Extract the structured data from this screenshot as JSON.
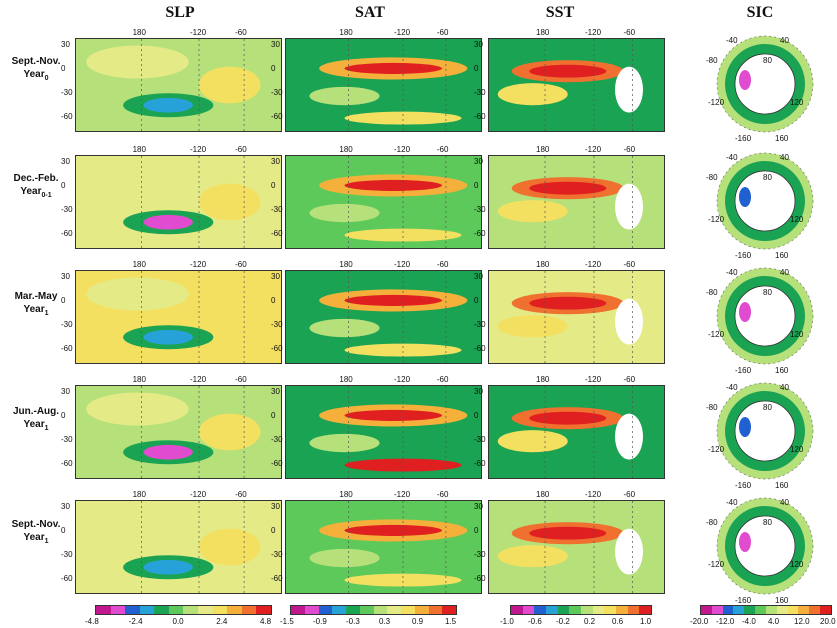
{
  "columns": [
    "SLP",
    "SAT",
    "SST",
    "SIC"
  ],
  "rows": [
    {
      "season": "Sept.-Nov.",
      "year": "Year",
      "sub": "0"
    },
    {
      "season": "Dec.-Feb.",
      "year": "Year",
      "sub": "0-1"
    },
    {
      "season": "Mar.-May",
      "year": "Year",
      "sub": "1"
    },
    {
      "season": "Jun.-Aug.",
      "year": "Year",
      "sub": "1"
    },
    {
      "season": "Sept.-Nov.",
      "year": "Year",
      "sub": "1"
    }
  ],
  "map_lon_ticks": [
    "180",
    "-120",
    "-60"
  ],
  "map_lat_ticks": [
    "30",
    "0",
    "-30",
    "-60"
  ],
  "polar_ticks": [
    "-40",
    "40",
    "-80",
    "80",
    "-120",
    "120",
    "-160",
    "160"
  ],
  "colorbars": {
    "slp": [
      "-4.8",
      "-2.4",
      "0.0",
      "2.4",
      "4.8"
    ],
    "sat": [
      "-1.5",
      "-0.9",
      "-0.3",
      "0.3",
      "0.9",
      "1.5"
    ],
    "sst": [
      "-1.0",
      "-0.6",
      "-0.2",
      "0.2",
      "0.6",
      "1.0"
    ],
    "sic": [
      "-20.0",
      "-12.0",
      "-4.0",
      "4.0",
      "12.0",
      "20.0"
    ]
  },
  "palette": [
    "#c2188f",
    "#e04bd0",
    "#2060d0",
    "#27a2d8",
    "#1aa352",
    "#5cc95a",
    "#b5e07a",
    "#e3ea86",
    "#f4e060",
    "#f4b03a",
    "#f07030",
    "#e02020"
  ]
}
